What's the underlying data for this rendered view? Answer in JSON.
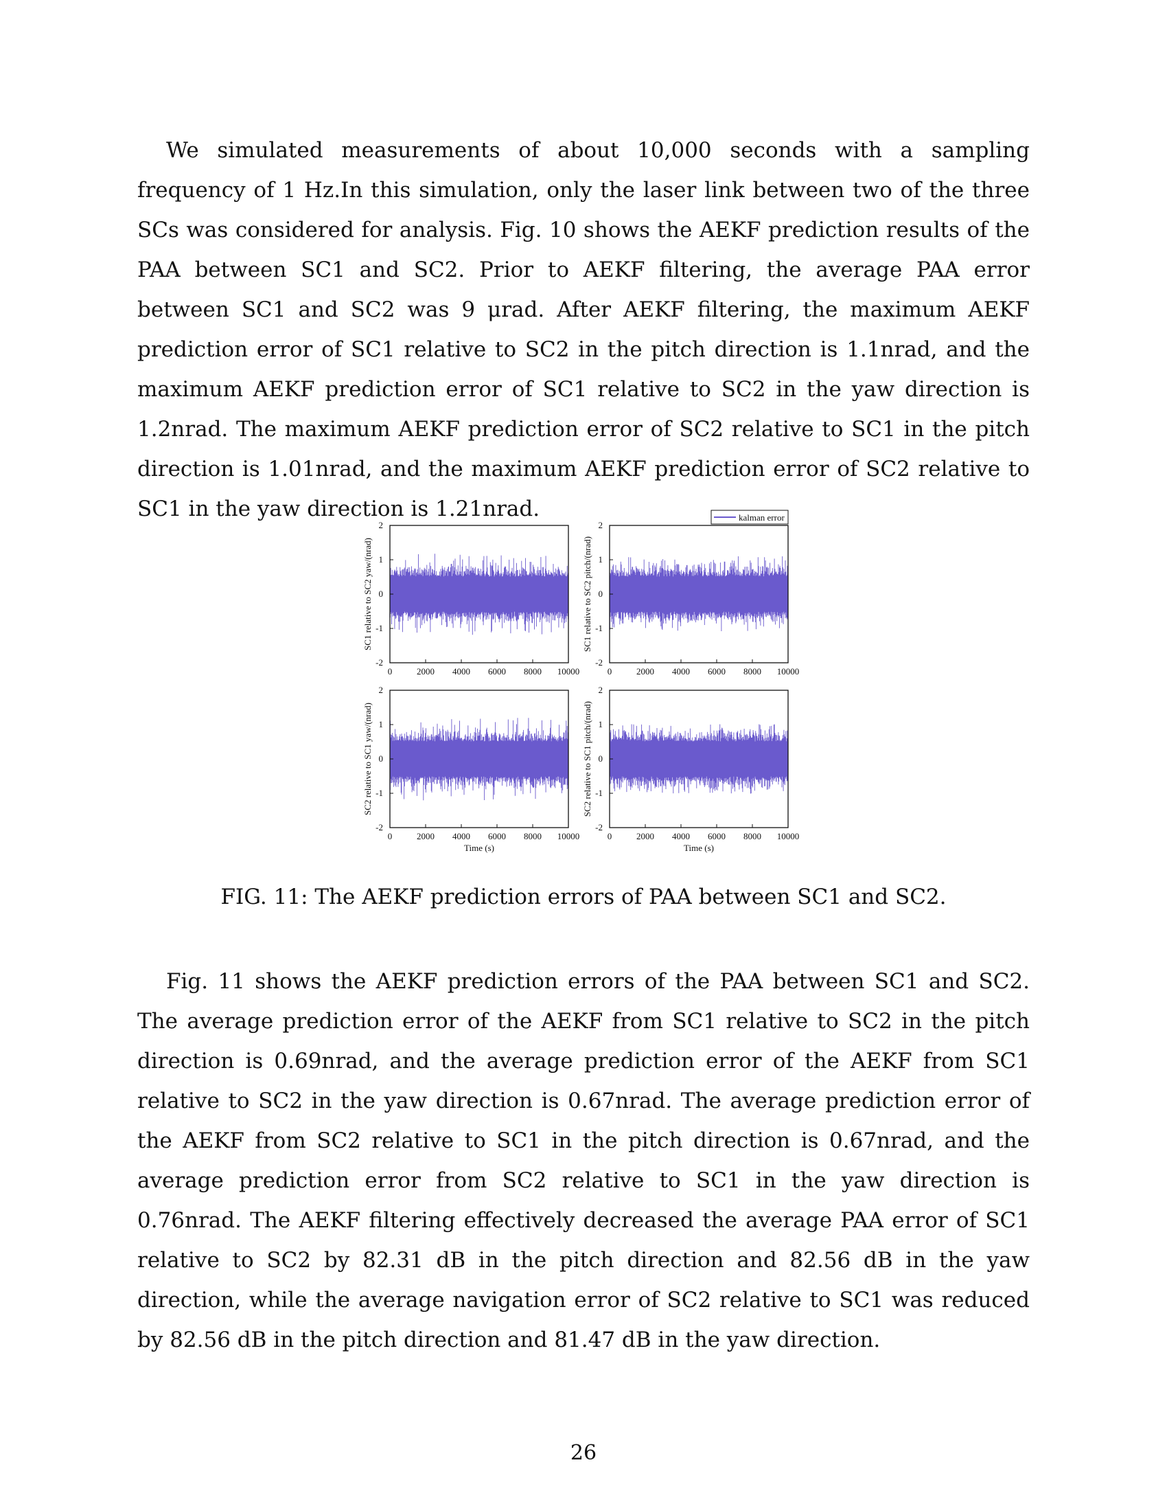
{
  "paragraphs": {
    "p1": "We simulated measurements of about 10,000 seconds with a sampling frequency of 1 Hz.In this simulation, only the laser link between two of the three SCs was considered for analysis. Fig. 10 shows the AEKF prediction results of the PAA between SC1 and SC2. Prior to AEKF filtering, the average PAA error between SC1 and SC2 was 9 μrad. After AEKF filtering, the maximum AEKF prediction error of SC1 relative to SC2 in the pitch direction is 1.1nrad, and the maximum AEKF prediction error of SC1 relative to SC2 in the yaw direction is 1.2nrad. The maximum AEKF prediction error of SC2 relative to SC1 in the pitch direction is 1.01nrad, and the maximum AEKF prediction error of SC2 relative to SC1 in the yaw direction is 1.21nrad.",
    "p2": "Fig. 11 shows the AEKF prediction errors of the PAA between SC1 and SC2. The average prediction error of the AEKF from SC1 relative to SC2 in the pitch direction is 0.69nrad, and the average prediction error of the AEKF from SC1 relative to SC2 in the yaw direction is 0.67nrad. The average prediction error of the AEKF from SC2 relative to SC1 in the pitch direction is 0.67nrad, and the average prediction error from SC2 relative to SC1 in the yaw direction is 0.76nrad. The AEKF filtering effectively decreased the average PAA error of SC1 relative to SC2 by 82.31 dB in the pitch direction and 82.56 dB in the yaw direction, while the average navigation error of SC2 relative to SC1 was reduced by 82.56 dB in the pitch direction and 81.47 dB in the yaw direction."
  },
  "caption": "FIG. 11: The AEKF prediction errors of PAA between SC1 and SC2.",
  "page_number": "26",
  "chart_data": [
    {
      "type": "line",
      "panel": "top-left",
      "ylabel": "SC1 relative to SC2 yaw/(nrad)",
      "xlabel": "",
      "xlim": [
        0,
        10000
      ],
      "ylim": [
        -2,
        2
      ],
      "xticks": [
        "0",
        "2000",
        "4000",
        "6000",
        "8000",
        "10000"
      ],
      "yticks": [
        "-2",
        "-1",
        "0",
        "1",
        "2"
      ],
      "series": [
        {
          "name": "kalman error",
          "n_points": 10000,
          "mean": 0,
          "typical_amplitude": 0.6,
          "max_abs": 1.2
        }
      ],
      "legend": null,
      "color": "#6a5acd"
    },
    {
      "type": "line",
      "panel": "top-right",
      "ylabel": "SC1 relative to SC2 pitch/(nrad)",
      "xlabel": "",
      "xlim": [
        0,
        10000
      ],
      "ylim": [
        -2,
        2
      ],
      "xticks": [
        "0",
        "2000",
        "4000",
        "6000",
        "8000",
        "10000"
      ],
      "yticks": [
        "-2",
        "-1",
        "0",
        "1",
        "2"
      ],
      "series": [
        {
          "name": "kalman error",
          "n_points": 10000,
          "mean": 0,
          "typical_amplitude": 0.6,
          "max_abs": 1.1
        }
      ],
      "legend": "top-right",
      "color": "#6a5acd"
    },
    {
      "type": "line",
      "panel": "bottom-left",
      "ylabel": "SC2 relative to SC1 yaw/(nrad)",
      "xlabel": "Time (s)",
      "xlim": [
        0,
        10000
      ],
      "ylim": [
        -2,
        2
      ],
      "xticks": [
        "0",
        "2000",
        "4000",
        "6000",
        "8000",
        "10000"
      ],
      "yticks": [
        "-2",
        "-1",
        "0",
        "1",
        "2"
      ],
      "series": [
        {
          "name": "kalman error",
          "n_points": 10000,
          "mean": 0,
          "typical_amplitude": 0.6,
          "max_abs": 1.21
        }
      ],
      "legend": null,
      "color": "#6a5acd"
    },
    {
      "type": "line",
      "panel": "bottom-right",
      "ylabel": "SC2 relative to SC1 pitch/(nrad)",
      "xlabel": "Time (s)",
      "xlim": [
        0,
        10000
      ],
      "ylim": [
        -2,
        2
      ],
      "xticks": [
        "0",
        "2000",
        "4000",
        "6000",
        "8000",
        "10000"
      ],
      "yticks": [
        "-2",
        "-1",
        "0",
        "1",
        "2"
      ],
      "series": [
        {
          "name": "kalman error",
          "n_points": 10000,
          "mean": 0,
          "typical_amplitude": 0.6,
          "max_abs": 1.01
        }
      ],
      "legend": null,
      "color": "#6a5acd"
    }
  ],
  "legend_label": "kalman error"
}
